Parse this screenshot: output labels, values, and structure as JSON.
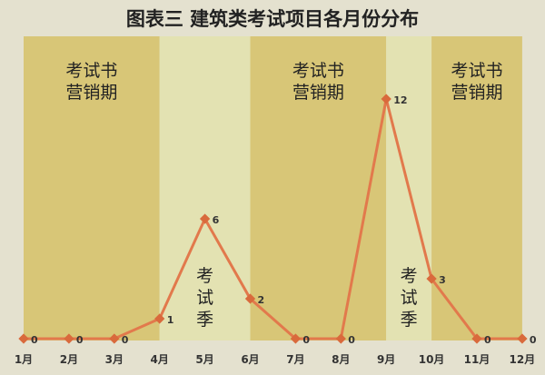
{
  "chart_data": {
    "type": "line",
    "title": "图表三  建筑类考试项目各月份分布",
    "categories": [
      "1月",
      "2月",
      "3月",
      "4月",
      "5月",
      "6月",
      "7月",
      "8月",
      "9月",
      "10月",
      "11月",
      "12月"
    ],
    "values": [
      0,
      0,
      0,
      1,
      6,
      2,
      0,
      0,
      12,
      3,
      0,
      0
    ],
    "ylim": [
      0,
      12
    ],
    "grid": false,
    "bands": [
      {
        "from": 1,
        "to": 4,
        "label": [
          "考试书",
          "营销期"
        ],
        "type": "marketing"
      },
      {
        "from": 4,
        "to": 6,
        "label": [
          "考",
          "试",
          "季"
        ],
        "type": "exam"
      },
      {
        "from": 6,
        "to": 9,
        "label": [
          "考试书",
          "营销期"
        ],
        "type": "marketing"
      },
      {
        "from": 9,
        "to": 10,
        "label": [
          "考",
          "试",
          "季"
        ],
        "type": "exam"
      },
      {
        "from": 10,
        "to": 12,
        "label": [
          "考试书",
          "营销期"
        ],
        "type": "marketing"
      }
    ],
    "colors": {
      "marketing": "#d8c677",
      "exam": "#e3e2b2",
      "line": "#e2794c",
      "marker": "#d96a3c",
      "background": "#e4e1cf"
    }
  }
}
